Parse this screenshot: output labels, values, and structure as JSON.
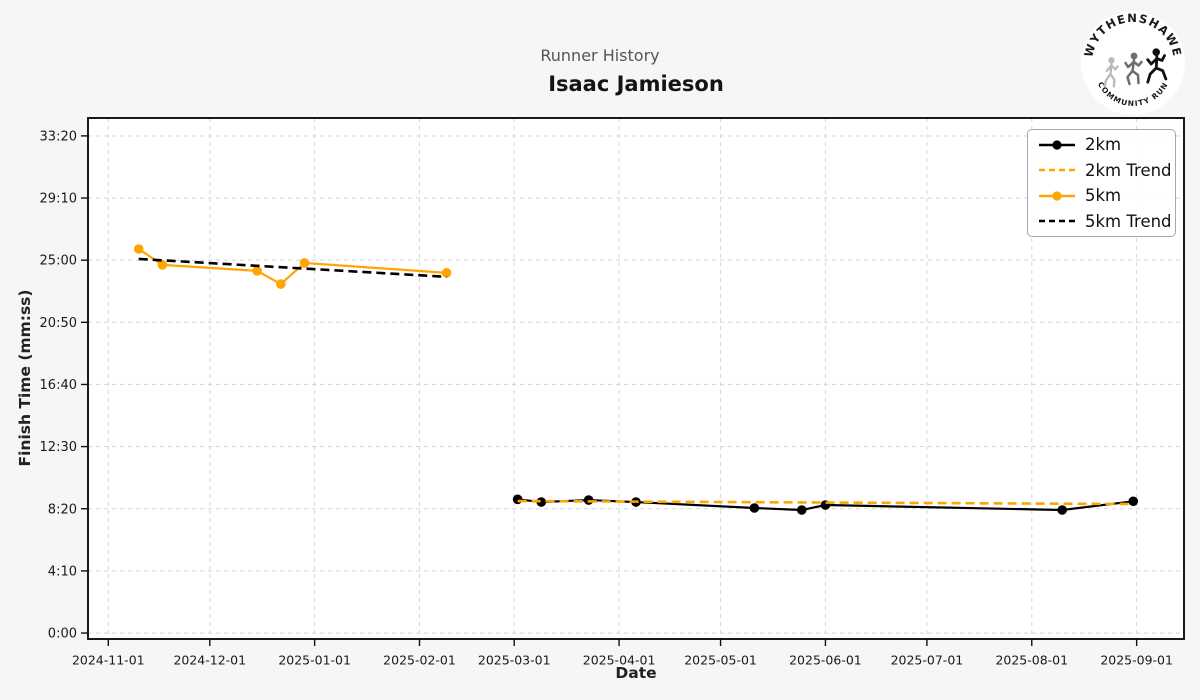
{
  "header": {
    "subtitle": "Runner History",
    "title": "Isaac Jamieson"
  },
  "logo": {
    "top_text": "WYTHENSHAWE",
    "bottom_text": "COMMUNITY RUN"
  },
  "chart_data": {
    "type": "line",
    "title": "Runner History",
    "subtitle": "Isaac Jamieson",
    "xlabel": "Date",
    "ylabel": "Finish Time (mm:ss)",
    "grid": true,
    "legend_position": "upper right",
    "legend": [
      "2km",
      "2km Trend",
      "5km",
      "5km Trend"
    ],
    "x_ticks": [
      "2024-11-01",
      "2024-12-01",
      "2025-01-01",
      "2025-02-01",
      "2025-03-01",
      "2025-04-01",
      "2025-05-01",
      "2025-06-01",
      "2025-07-01",
      "2025-08-01",
      "2025-09-01"
    ],
    "y_ticks": [
      "0:00",
      "4:10",
      "8:20",
      "12:30",
      "16:40",
      "20:50",
      "25:00",
      "29:10",
      "33:20"
    ],
    "x_range": [
      "2024-10-26",
      "2025-09-15"
    ],
    "y_range_seconds": [
      -24,
      2072
    ],
    "colors": {
      "orange": "#FFA500",
      "black": "#000000",
      "gridline": "#d9d9d9",
      "plot_bg": "#ffffff",
      "figure_bg": "#f5f6f5"
    },
    "series": [
      {
        "name": "2km",
        "color": "#000000",
        "dash": false,
        "markers": true,
        "points": [
          {
            "date": "2025-03-02",
            "time": "8:58"
          },
          {
            "date": "2025-03-09",
            "time": "8:47"
          },
          {
            "date": "2025-03-23",
            "time": "8:55"
          },
          {
            "date": "2025-04-06",
            "time": "8:47"
          },
          {
            "date": "2025-05-11",
            "time": "8:23"
          },
          {
            "date": "2025-05-25",
            "time": "8:15"
          },
          {
            "date": "2025-06-01",
            "time": "8:35"
          },
          {
            "date": "2025-08-10",
            "time": "8:15"
          },
          {
            "date": "2025-08-31",
            "time": "8:50"
          }
        ]
      },
      {
        "name": "2km Trend",
        "color": "#FFA500",
        "dash": true,
        "markers": false,
        "points": [
          {
            "date": "2025-03-02",
            "time": "8:51"
          },
          {
            "date": "2025-08-31",
            "time": "8:39"
          }
        ]
      },
      {
        "name": "5km",
        "color": "#FFA500",
        "dash": false,
        "markers": true,
        "points": [
          {
            "date": "2024-11-10",
            "time": "25:45"
          },
          {
            "date": "2024-11-17",
            "time": "24:41"
          },
          {
            "date": "2024-12-15",
            "time": "24:17"
          },
          {
            "date": "2024-12-22",
            "time": "23:24"
          },
          {
            "date": "2024-12-29",
            "time": "24:49"
          },
          {
            "date": "2025-02-09",
            "time": "24:09"
          }
        ]
      },
      {
        "name": "5km Trend",
        "color": "#000000",
        "dash": true,
        "markers": false,
        "points": [
          {
            "date": "2024-11-10",
            "time": "25:05"
          },
          {
            "date": "2025-02-09",
            "time": "23:53"
          }
        ]
      }
    ]
  }
}
